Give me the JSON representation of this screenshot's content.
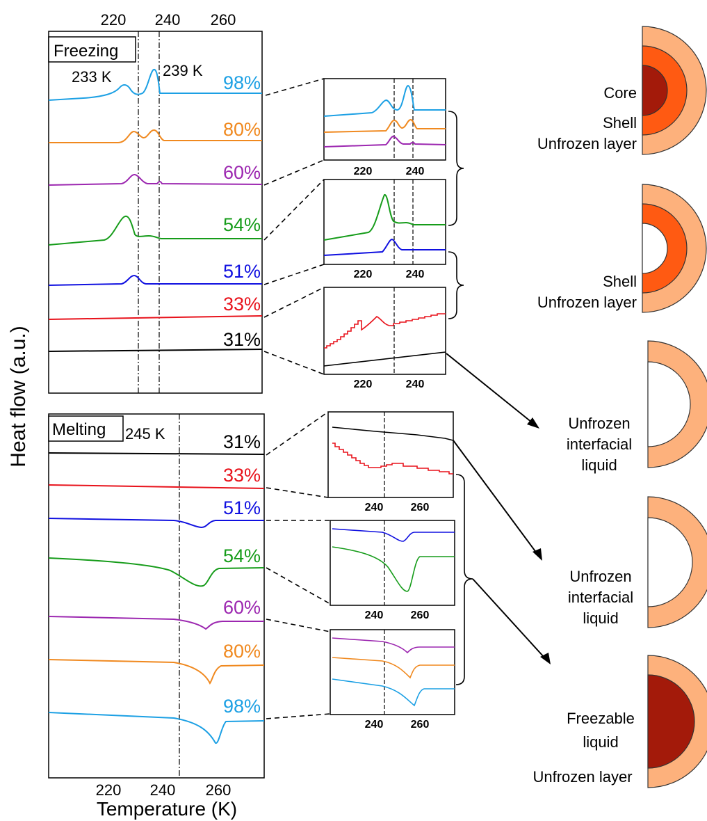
{
  "y_axis_label": "Heat flow (a.u.)",
  "x_axis_label": "Temperature (K)",
  "colors": {
    "98%": "#1ca0e4",
    "80%": "#f0891f",
    "60%": "#9c27b0",
    "54%": "#169c1a",
    "51%": "#1010e0",
    "33%": "#e8121b",
    "31%": "#000000",
    "core": "#a31a0a",
    "shell": "#ff5a12",
    "unfrozen": "#fdb17c"
  },
  "chart_data": [
    {
      "type": "line",
      "panel": "Freezing",
      "title": "Freezing",
      "xlabel": "",
      "ylabel": "Heat flow (a.u.)",
      "xlim": [
        203,
        273
      ],
      "xticks": [
        220,
        240,
        260
      ],
      "annotations": [
        "233 K",
        "239 K"
      ],
      "vlines": [
        233,
        239
      ],
      "series": [
        {
          "name": "98%",
          "points": [
            [
              203,
              0
            ],
            [
              220,
              0.08
            ],
            [
              226,
              0.35
            ],
            [
              229,
              0.05
            ],
            [
              233,
              0
            ],
            [
              236,
              0.6
            ],
            [
              238,
              0.2
            ],
            [
              239,
              0
            ],
            [
              273,
              0
            ]
          ]
        },
        {
          "name": "80%",
          "points": [
            [
              203,
              0
            ],
            [
              228,
              0
            ],
            [
              232,
              0.25
            ],
            [
              234,
              0.05
            ],
            [
              237,
              0.25
            ],
            [
              239,
              0.05
            ],
            [
              240,
              0
            ],
            [
              273,
              0
            ]
          ]
        },
        {
          "name": "60%",
          "points": [
            [
              203,
              0
            ],
            [
              228,
              0
            ],
            [
              232,
              0.25
            ],
            [
              235,
              0
            ],
            [
              239,
              0.05
            ],
            [
              240,
              0
            ],
            [
              273,
              0
            ]
          ]
        },
        {
          "name": "54%",
          "points": [
            [
              203,
              0
            ],
            [
              222,
              0.3
            ],
            [
              227,
              1.0
            ],
            [
              230,
              0.2
            ],
            [
              236,
              0.25
            ],
            [
              239,
              0.1
            ],
            [
              273,
              0.1
            ]
          ]
        },
        {
          "name": "51%",
          "points": [
            [
              203,
              0
            ],
            [
              228,
              0
            ],
            [
              231,
              0.25
            ],
            [
              234,
              0
            ],
            [
              273,
              0
            ]
          ]
        },
        {
          "name": "33%",
          "points": [
            [
              203,
              0
            ],
            [
              273,
              0
            ]
          ]
        },
        {
          "name": "31%",
          "points": [
            [
              203,
              0
            ],
            [
              273,
              0
            ]
          ]
        }
      ]
    },
    {
      "type": "line",
      "panel": "Melting",
      "title": "Melting",
      "xlabel": "Temperature (K)",
      "ylabel": "Heat flow (a.u.)",
      "xlim": [
        203,
        273
      ],
      "xticks": [
        220,
        240,
        260
      ],
      "annotations": [
        "245 K"
      ],
      "vlines": [
        245
      ],
      "series": [
        {
          "name": "31%",
          "points": [
            [
              203,
              0
            ],
            [
              273,
              0
            ]
          ]
        },
        {
          "name": "33%",
          "points": [
            [
              203,
              0
            ],
            [
              273,
              0
            ]
          ]
        },
        {
          "name": "51%",
          "points": [
            [
              203,
              0
            ],
            [
              248,
              -0.1
            ],
            [
              254,
              -0.3
            ],
            [
              257,
              0
            ],
            [
              273,
              0
            ]
          ]
        },
        {
          "name": "54%",
          "points": [
            [
              203,
              0
            ],
            [
              245,
              -0.4
            ],
            [
              254,
              -1.0
            ],
            [
              259,
              -0.2
            ],
            [
              273,
              -0.2
            ]
          ]
        },
        {
          "name": "60%",
          "points": [
            [
              203,
              0
            ],
            [
              248,
              -0.1
            ],
            [
              256,
              -0.4
            ],
            [
              258,
              -0.1
            ],
            [
              273,
              -0.1
            ]
          ]
        },
        {
          "name": "80%",
          "points": [
            [
              203,
              0
            ],
            [
              250,
              -0.15
            ],
            [
              257,
              -0.6
            ],
            [
              259,
              -0.1
            ],
            [
              273,
              -0.1
            ]
          ]
        },
        {
          "name": "98%",
          "points": [
            [
              203,
              0
            ],
            [
              250,
              -0.2
            ],
            [
              259,
              -0.8
            ],
            [
              261,
              -0.2
            ],
            [
              273,
              -0.2
            ]
          ]
        }
      ]
    },
    {
      "type": "line",
      "panel": "freezing-inset-1",
      "xlim": [
        203,
        255
      ],
      "xticks": [
        220,
        240
      ],
      "vlines": [
        233,
        239
      ],
      "series": [
        "98%",
        "80%",
        "60%"
      ]
    },
    {
      "type": "line",
      "panel": "freezing-inset-2",
      "xlim": [
        203,
        255
      ],
      "xticks": [
        220,
        240
      ],
      "vlines": [
        233,
        239
      ],
      "series": [
        "54%",
        "51%"
      ]
    },
    {
      "type": "line",
      "panel": "freezing-inset-3",
      "xlim": [
        203,
        255
      ],
      "xticks": [
        220,
        240
      ],
      "vlines": [
        233
      ],
      "series": [
        "33%",
        "31%"
      ]
    },
    {
      "type": "line",
      "panel": "melting-inset-1",
      "xlim": [
        225,
        273
      ],
      "xticks": [
        240,
        260
      ],
      "vlines": [
        245
      ],
      "series": [
        "31%",
        "33%"
      ]
    },
    {
      "type": "line",
      "panel": "melting-inset-2",
      "xlim": [
        225,
        273
      ],
      "xticks": [
        240,
        260
      ],
      "vlines": [
        245
      ],
      "series": [
        "51%",
        "54%"
      ]
    },
    {
      "type": "line",
      "panel": "melting-inset-3",
      "xlim": [
        225,
        273
      ],
      "xticks": [
        240,
        260
      ],
      "vlines": [
        245
      ],
      "series": [
        "60%",
        "80%",
        "98%"
      ]
    }
  ],
  "schematics": [
    {
      "layers": [
        "unfrozen",
        "shell",
        "core"
      ],
      "labels": [
        "Core",
        "Shell",
        "Unfrozen layer"
      ]
    },
    {
      "layers": [
        "unfrozen",
        "shell"
      ],
      "labels": [
        "Shell",
        "Unfrozen layer"
      ]
    },
    {
      "layers": [
        "unfrozen"
      ],
      "labels": [
        "Unfrozen",
        "interfacial",
        "liquid"
      ]
    },
    {
      "layers": [
        "unfrozen"
      ],
      "labels": [
        "Unfrozen",
        "interfacial",
        "liquid"
      ]
    },
    {
      "layers": [
        "unfrozen",
        "core"
      ],
      "labels": [
        "Freezable",
        "liquid",
        "Unfrozen layer"
      ]
    }
  ]
}
